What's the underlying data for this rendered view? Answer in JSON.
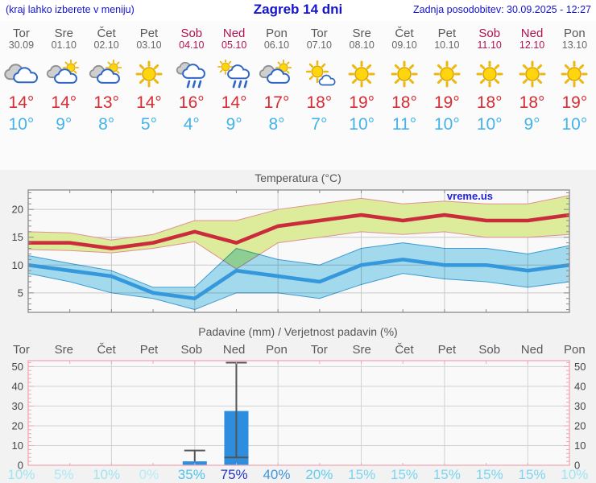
{
  "header": {
    "left": "(kraj lahko izberete v meniju)",
    "title": "Zagreb 14 dni",
    "right": "Zadnja posodobitev: 30.09.2025 - 12:27"
  },
  "palette": {
    "header_blue": "#1414cf",
    "weekend_crimson": "#b01351",
    "weekday_gray": "#58585a",
    "high_temp_red": "#d62c33",
    "low_temp_blue": "#43b3e8",
    "bar_blue": "#2d8ee0",
    "max_band_green": "#dcec9b",
    "min_band_cyan": "#a6dff2",
    "red_line": "#cb2c3c",
    "blue_line": "#3598dc",
    "precip_frame_pink": "#f0a8b4",
    "watermark_blue": "#2222dd"
  },
  "forecast_days": [
    {
      "name": "Tor",
      "date": "30.09",
      "weekend": false,
      "icon": "cloudy",
      "high": "14°",
      "low": "10°",
      "precip_prob": "10%",
      "prob_color": "#9fe5f3"
    },
    {
      "name": "Sre",
      "date": "01.10",
      "weekend": false,
      "icon": "partly-sunny",
      "high": "14°",
      "low": "9°",
      "precip_prob": "5%",
      "prob_color": "#abe9f5"
    },
    {
      "name": "Čet",
      "date": "02.10",
      "weekend": false,
      "icon": "partly-sunny",
      "high": "13°",
      "low": "8°",
      "precip_prob": "10%",
      "prob_color": "#9fe5f3"
    },
    {
      "name": "Pet",
      "date": "03.10",
      "weekend": false,
      "icon": "sunny",
      "high": "14°",
      "low": "5°",
      "precip_prob": "0%",
      "prob_color": "#b6ecf7"
    },
    {
      "name": "Sob",
      "date": "04.10",
      "weekend": true,
      "icon": "rain",
      "high": "16°",
      "low": "4°",
      "precip_prob": "35%",
      "prob_color": "#4ec4ec"
    },
    {
      "name": "Ned",
      "date": "05.10",
      "weekend": true,
      "icon": "sun-showers",
      "high": "14°",
      "low": "9°",
      "precip_prob": "75%",
      "prob_color": "#2737c8"
    },
    {
      "name": "Pon",
      "date": "06.10",
      "weekend": false,
      "icon": "partly-sunny",
      "high": "17°",
      "low": "8°",
      "precip_prob": "40%",
      "prob_color": "#3e97dd"
    },
    {
      "name": "Tor",
      "date": "07.10",
      "weekend": false,
      "icon": "mostly-sunny",
      "high": "18°",
      "low": "7°",
      "precip_prob": "20%",
      "prob_color": "#62cfef"
    },
    {
      "name": "Sre",
      "date": "08.10",
      "weekend": false,
      "icon": "sunny",
      "high": "19°",
      "low": "10°",
      "precip_prob": "15%",
      "prob_color": "#79d7f1"
    },
    {
      "name": "Čet",
      "date": "09.10",
      "weekend": false,
      "icon": "sunny",
      "high": "18°",
      "low": "11°",
      "precip_prob": "15%",
      "prob_color": "#79d7f1"
    },
    {
      "name": "Pet",
      "date": "10.10",
      "weekend": false,
      "icon": "sunny",
      "high": "19°",
      "low": "10°",
      "precip_prob": "15%",
      "prob_color": "#79d7f1"
    },
    {
      "name": "Sob",
      "date": "11.10",
      "weekend": true,
      "icon": "sunny",
      "high": "18°",
      "low": "10°",
      "precip_prob": "15%",
      "prob_color": "#79d7f1"
    },
    {
      "name": "Ned",
      "date": "12.10",
      "weekend": true,
      "icon": "sunny",
      "high": "18°",
      "low": "9°",
      "precip_prob": "15%",
      "prob_color": "#79d7f1"
    },
    {
      "name": "Pon",
      "date": "13.10",
      "weekend": false,
      "icon": "sunny",
      "high": "19°",
      "low": "10°",
      "precip_prob": "10%",
      "prob_color": "#9fe5f3"
    }
  ],
  "temp_chart": {
    "title": "Temperatura (°C)",
    "watermark": "vreme.us"
  },
  "precip_chart": {
    "title": "Padavine (mm) / Verjetnost padavin (%)"
  },
  "chart_data": [
    {
      "type": "line",
      "title": "Temperatura (°C)",
      "categories": [
        "Tor 30.09",
        "Sre 01.10",
        "Čet 02.10",
        "Pet 03.10",
        "Sob 04.10",
        "Ned 05.10",
        "Pon 06.10",
        "Tor 07.10",
        "Sre 08.10",
        "Čet 09.10",
        "Pet 10.10",
        "Sob 11.10",
        "Ned 12.10",
        "Pon 13.10"
      ],
      "series": [
        {
          "name": "max_temp",
          "color": "#cb2c3c",
          "values": [
            14,
            14,
            13,
            14,
            16,
            14,
            17,
            18,
            19,
            18,
            19,
            18,
            18,
            19
          ]
        },
        {
          "name": "max_band_upper",
          "color": "#dcec9b",
          "values": [
            16,
            15.8,
            14.5,
            15.5,
            18,
            18,
            20,
            21,
            22,
            21,
            21.5,
            21,
            21,
            22.5
          ]
        },
        {
          "name": "max_band_lower",
          "color": "#dcec9b",
          "values": [
            12.8,
            12.6,
            12.2,
            13,
            14.2,
            9.3,
            14,
            15,
            16,
            15.5,
            16,
            15,
            15,
            15.5
          ]
        },
        {
          "name": "min_temp",
          "color": "#3598dc",
          "values": [
            10,
            9,
            8,
            5,
            4,
            9,
            8,
            7,
            10,
            11,
            10,
            10,
            9,
            10
          ]
        },
        {
          "name": "min_band_upper",
          "color": "#a6dff2",
          "values": [
            11.7,
            10.3,
            9,
            6,
            6,
            13,
            11,
            10,
            13,
            14,
            13,
            13,
            12,
            13.5
          ]
        },
        {
          "name": "min_band_lower",
          "color": "#a6dff2",
          "values": [
            8.5,
            7,
            5,
            4,
            2,
            5,
            5,
            4,
            6.5,
            8.5,
            7.5,
            7,
            6,
            7
          ]
        }
      ],
      "ylim": [
        1.5,
        23.5
      ],
      "yticks": [
        5,
        10,
        15,
        20
      ],
      "grid_day_indices": [
        2,
        4,
        6,
        8,
        10,
        12
      ],
      "grid": true,
      "legend": "none",
      "watermark": "vreme.us"
    },
    {
      "type": "bar",
      "title": "Padavine (mm) / Verjetnost padavin (%)",
      "categories": [
        "Tor",
        "Sre",
        "Čet",
        "Pet",
        "Sob",
        "Ned",
        "Pon",
        "Tor",
        "Sre",
        "Čet",
        "Pet",
        "Sob",
        "Ned",
        "Pon"
      ],
      "values": [
        0,
        0,
        0,
        0,
        2,
        27.5,
        0,
        0,
        0,
        0,
        0,
        0,
        0,
        0
      ],
      "bars": [
        {
          "day_index": 4,
          "value_mm": 2,
          "whisker_low_mm": 2,
          "whisker_high_mm": 7.5,
          "show_low_cap": false
        },
        {
          "day_index": 5,
          "value_mm": 27.5,
          "whisker_low_mm": 4,
          "whisker_high_mm": 52,
          "show_low_cap": true
        }
      ],
      "probabilities_pct": [
        10,
        5,
        10,
        0,
        35,
        75,
        40,
        20,
        15,
        15,
        15,
        15,
        15,
        10
      ],
      "ylim": [
        0,
        53
      ],
      "yticks": [
        0,
        10,
        20,
        30,
        40,
        50
      ],
      "grid_day_indices": [
        2,
        4,
        6,
        8,
        10,
        12
      ],
      "grid": true,
      "legend": "none"
    }
  ]
}
